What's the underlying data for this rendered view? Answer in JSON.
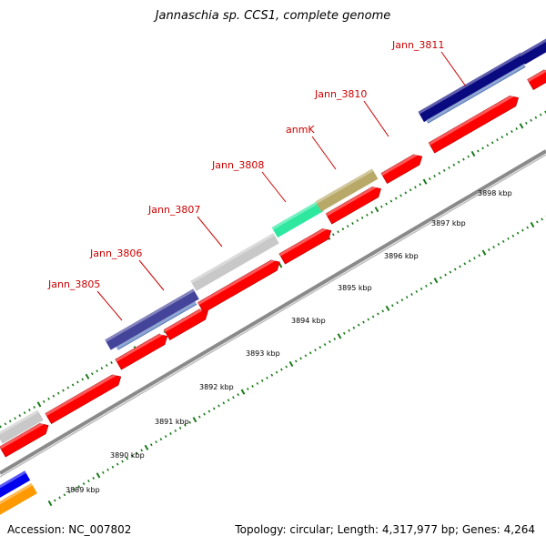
{
  "title": "Jannaschia sp. CCS1, complete genome",
  "accession_text": "Accession: NC_007802",
  "summary_text": "Topology: circular; Length: 4,317,977 bp; Genes: 4,264",
  "colors": {
    "gene_label": "#cc0000",
    "tick": "#1a7a1a",
    "backbone": "#8a8a8a",
    "cds_forward": "#ff0000",
    "gray_feature": "#c8c8c8",
    "navy_feature": "#0a0a80",
    "blue_feature": "#0000ee",
    "orange_feature": "#ff9900",
    "teal_feature": "#2ee8a0",
    "olive_feature": "#b8a968",
    "slate_feature": "#44449a",
    "steel_subband": "#5577bb"
  },
  "gene_labels": [
    "Jann_3805",
    "Jann_3806",
    "Jann_3807",
    "Jann_3808",
    "anmK",
    "Jann_3810",
    "Jann_3811"
  ],
  "kbp_labels": [
    "3889 kbp",
    "3890 kbp",
    "3891 kbp",
    "3892 kbp",
    "3893 kbp",
    "3894 kbp",
    "3895 kbp",
    "3896 kbp",
    "3897 kbp",
    "3898 kbp"
  ]
}
